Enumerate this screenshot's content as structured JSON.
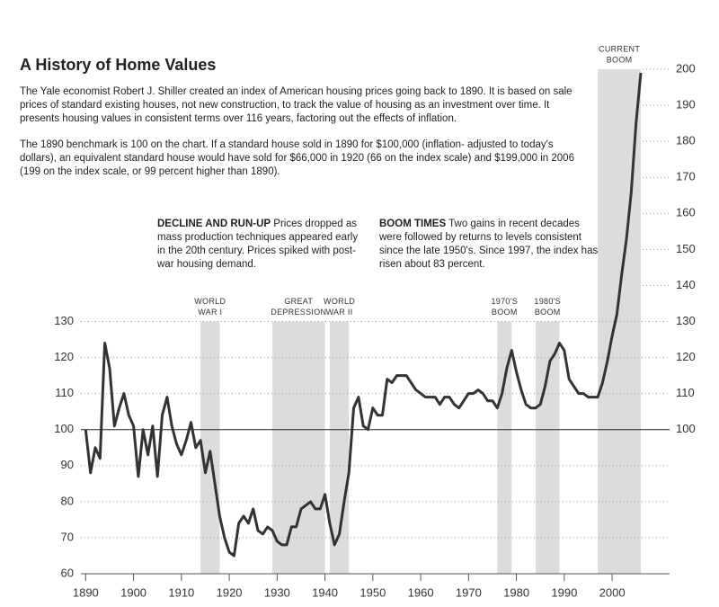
{
  "chart_data": {
    "type": "line",
    "title": "A History of Home Values",
    "paragraphs": [
      "The Yale economist Robert J. Shiller created an index of American housing prices going back to 1890.  It is based on sale prices of standard existing houses, not new construction, to track the value of housing as an investment over time.  It presents housing values in consistent terms over 116 years, factoring out the effects of inflation.",
      "The 1890 benchmark is 100 on the chart.  If a standard house sold in 1890 for $100,000 (inflation- adjusted to today's dollars), an equivalent standard house would have sold for $66,000 in 1920 (66 on the index scale) and $199,000 in 2006 (199 on the index scale, or 99 percent higher than 1890)."
    ],
    "annotations": [
      {
        "head": "DECLINE AND RUN-UP",
        "text": "Prices dropped as mass production techniques appeared early in the 20th century.  Prices spiked with post-war housing demand."
      },
      {
        "head": "BOOM TIMES",
        "text": "Two gains in recent decades were followed by returns to levels consistent since the late 1950's.  Since 1997, the index has risen about 83 percent."
      }
    ],
    "bands": [
      {
        "label": [
          "WORLD",
          "WAR I"
        ],
        "start": 1914,
        "end": 1918,
        "ymax": 130
      },
      {
        "label": [
          "GREAT",
          "DEPRESSION"
        ],
        "start": 1929,
        "end": 1940,
        "ymax": 130
      },
      {
        "label": [
          "WORLD",
          "WAR II"
        ],
        "start": 1941,
        "end": 1945,
        "ymax": 130
      },
      {
        "label": [
          "1970'S",
          "BOOM"
        ],
        "start": 1976,
        "end": 1979,
        "ymax": 130
      },
      {
        "label": [
          "1980'S",
          "BOOM"
        ],
        "start": 1984,
        "end": 1989,
        "ymax": 130
      },
      {
        "label": [
          "CURRENT",
          "BOOM"
        ],
        "start": 1997,
        "end": 2006,
        "ymax": 200
      }
    ],
    "baseline": 100,
    "color": "#333333",
    "x": [
      1890,
      1891,
      1892,
      1893,
      1894,
      1895,
      1896,
      1897,
      1898,
      1899,
      1900,
      1901,
      1902,
      1903,
      1904,
      1905,
      1906,
      1907,
      1908,
      1909,
      1910,
      1911,
      1912,
      1913,
      1914,
      1915,
      1916,
      1917,
      1918,
      1919,
      1920,
      1921,
      1922,
      1923,
      1924,
      1925,
      1926,
      1927,
      1928,
      1929,
      1930,
      1931,
      1932,
      1933,
      1934,
      1935,
      1936,
      1937,
      1938,
      1939,
      1940,
      1941,
      1942,
      1943,
      1944,
      1945,
      1946,
      1947,
      1948,
      1949,
      1950,
      1951,
      1952,
      1953,
      1954,
      1955,
      1956,
      1957,
      1958,
      1959,
      1960,
      1961,
      1962,
      1963,
      1964,
      1965,
      1966,
      1967,
      1968,
      1969,
      1970,
      1971,
      1972,
      1973,
      1974,
      1975,
      1976,
      1977,
      1978,
      1979,
      1980,
      1981,
      1982,
      1983,
      1984,
      1985,
      1986,
      1987,
      1988,
      1989,
      1990,
      1991,
      1992,
      1993,
      1994,
      1995,
      1996,
      1997,
      1998,
      1999,
      2000,
      2001,
      2002,
      2003,
      2004,
      2005,
      2006
    ],
    "values": [
      100,
      88,
      95,
      92,
      124,
      117,
      101,
      106,
      110,
      104,
      101,
      87,
      100,
      93,
      101,
      87,
      104,
      109,
      101,
      96,
      93,
      97,
      102,
      95,
      97,
      88,
      94,
      85,
      76,
      70,
      66,
      65,
      74,
      76,
      74,
      78,
      72,
      71,
      73,
      72,
      69,
      68,
      68,
      73,
      73,
      78,
      79,
      80,
      78,
      78,
      82,
      74,
      68,
      71,
      80,
      88,
      106,
      109,
      101,
      100,
      106,
      104,
      104,
      114,
      113,
      115,
      115,
      115,
      113,
      111,
      110,
      109,
      109,
      109,
      107,
      109,
      109,
      107,
      106,
      108,
      110,
      110,
      111,
      110,
      108,
      108,
      106,
      110,
      117,
      122,
      116,
      111,
      107,
      106,
      106,
      107,
      112,
      119,
      121,
      124,
      122,
      114,
      112,
      110,
      110,
      109,
      109,
      109,
      113,
      119,
      126,
      132,
      143,
      153,
      166,
      185,
      199
    ],
    "xlim": [
      1889,
      2012
    ],
    "xticks": [
      1890,
      1900,
      1910,
      1920,
      1930,
      1940,
      1950,
      1960,
      1970,
      1980,
      1990,
      2000
    ],
    "ylim": [
      60,
      200
    ],
    "yticks": [
      60,
      70,
      80,
      90,
      100,
      110,
      120,
      130
    ],
    "y2lim": [
      60,
      200
    ],
    "y2ticks": [
      100,
      110,
      120,
      130,
      140,
      150,
      160,
      170,
      180,
      190,
      200
    ],
    "grid": true
  }
}
